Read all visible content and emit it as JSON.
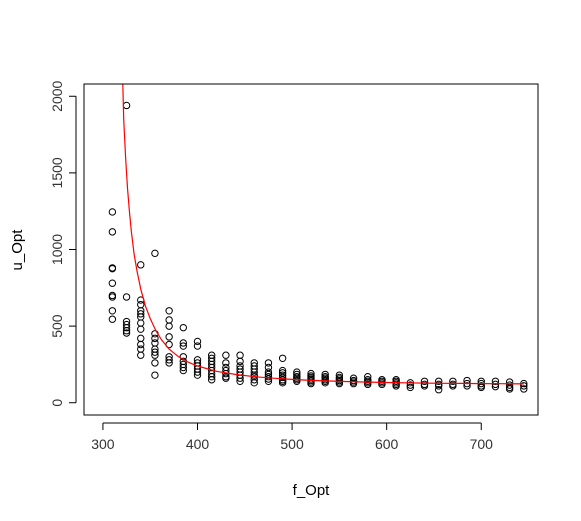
{
  "chart_data": {
    "type": "scatter",
    "title": "",
    "xlabel": "f_Opt",
    "ylabel": "u_Opt",
    "xlim": [
      280,
      760
    ],
    "ylim": [
      -80,
      2080
    ],
    "x_ticks": [
      300,
      400,
      500,
      600,
      700
    ],
    "y_ticks": [
      0,
      500,
      1000,
      1500,
      2000
    ],
    "x_tick_labels": [
      "300",
      "400",
      "500",
      "600",
      "700"
    ],
    "y_tick_labels": [
      "0",
      "500",
      "1000",
      "1500",
      "2000"
    ],
    "grid": false,
    "legend": "none",
    "point_color": "#000000",
    "curve_color": "#ff0000",
    "points": [
      [
        310,
        1245
      ],
      [
        310,
        1115
      ],
      [
        310,
        880
      ],
      [
        310,
        875
      ],
      [
        310,
        780
      ],
      [
        310,
        700
      ],
      [
        310,
        690
      ],
      [
        310,
        600
      ],
      [
        310,
        545
      ],
      [
        325,
        1940
      ],
      [
        325,
        690
      ],
      [
        325,
        530
      ],
      [
        325,
        510
      ],
      [
        325,
        490
      ],
      [
        325,
        470
      ],
      [
        325,
        455
      ],
      [
        340,
        900
      ],
      [
        340,
        670
      ],
      [
        340,
        640
      ],
      [
        340,
        600
      ],
      [
        340,
        580
      ],
      [
        340,
        560
      ],
      [
        340,
        520
      ],
      [
        340,
        480
      ],
      [
        340,
        420
      ],
      [
        340,
        380
      ],
      [
        340,
        350
      ],
      [
        340,
        310
      ],
      [
        355,
        975
      ],
      [
        355,
        450
      ],
      [
        355,
        420
      ],
      [
        355,
        390
      ],
      [
        355,
        350
      ],
      [
        355,
        330
      ],
      [
        355,
        310
      ],
      [
        355,
        260
      ],
      [
        355,
        180
      ],
      [
        370,
        600
      ],
      [
        370,
        540
      ],
      [
        370,
        500
      ],
      [
        370,
        430
      ],
      [
        370,
        380
      ],
      [
        370,
        300
      ],
      [
        370,
        280
      ],
      [
        370,
        260
      ],
      [
        385,
        490
      ],
      [
        385,
        390
      ],
      [
        385,
        370
      ],
      [
        385,
        300
      ],
      [
        385,
        270
      ],
      [
        385,
        250
      ],
      [
        385,
        230
      ],
      [
        385,
        210
      ],
      [
        400,
        400
      ],
      [
        400,
        370
      ],
      [
        400,
        280
      ],
      [
        400,
        260
      ],
      [
        400,
        240
      ],
      [
        400,
        220
      ],
      [
        400,
        200
      ],
      [
        400,
        180
      ],
      [
        415,
        310
      ],
      [
        415,
        290
      ],
      [
        415,
        270
      ],
      [
        415,
        250
      ],
      [
        415,
        230
      ],
      [
        415,
        210
      ],
      [
        415,
        190
      ],
      [
        415,
        170
      ],
      [
        415,
        150
      ],
      [
        430,
        310
      ],
      [
        430,
        260
      ],
      [
        430,
        230
      ],
      [
        430,
        210
      ],
      [
        430,
        190
      ],
      [
        430,
        170
      ],
      [
        430,
        160
      ],
      [
        445,
        310
      ],
      [
        445,
        270
      ],
      [
        445,
        240
      ],
      [
        445,
        220
      ],
      [
        445,
        200
      ],
      [
        445,
        180
      ],
      [
        445,
        160
      ],
      [
        445,
        140
      ],
      [
        460,
        260
      ],
      [
        460,
        240
      ],
      [
        460,
        220
      ],
      [
        460,
        200
      ],
      [
        460,
        180
      ],
      [
        460,
        170
      ],
      [
        460,
        150
      ],
      [
        460,
        130
      ],
      [
        475,
        260
      ],
      [
        475,
        230
      ],
      [
        475,
        200
      ],
      [
        475,
        185
      ],
      [
        475,
        170
      ],
      [
        475,
        155
      ],
      [
        475,
        140
      ],
      [
        490,
        290
      ],
      [
        490,
        210
      ],
      [
        490,
        195
      ],
      [
        490,
        180
      ],
      [
        490,
        165
      ],
      [
        490,
        150
      ],
      [
        490,
        140
      ],
      [
        490,
        130
      ],
      [
        505,
        200
      ],
      [
        505,
        185
      ],
      [
        505,
        170
      ],
      [
        505,
        160
      ],
      [
        505,
        150
      ],
      [
        505,
        140
      ],
      [
        520,
        190
      ],
      [
        520,
        175
      ],
      [
        520,
        165
      ],
      [
        520,
        155
      ],
      [
        520,
        145
      ],
      [
        520,
        135
      ],
      [
        520,
        125
      ],
      [
        535,
        185
      ],
      [
        535,
        170
      ],
      [
        535,
        160
      ],
      [
        535,
        150
      ],
      [
        535,
        140
      ],
      [
        535,
        130
      ],
      [
        550,
        180
      ],
      [
        550,
        165
      ],
      [
        550,
        155
      ],
      [
        550,
        145
      ],
      [
        550,
        135
      ],
      [
        550,
        125
      ],
      [
        565,
        160
      ],
      [
        565,
        145
      ],
      [
        565,
        135
      ],
      [
        565,
        125
      ],
      [
        580,
        170
      ],
      [
        580,
        150
      ],
      [
        580,
        140
      ],
      [
        580,
        130
      ],
      [
        580,
        120
      ],
      [
        595,
        150
      ],
      [
        595,
        140
      ],
      [
        595,
        130
      ],
      [
        595,
        120
      ],
      [
        610,
        150
      ],
      [
        610,
        140
      ],
      [
        610,
        130
      ],
      [
        610,
        120
      ],
      [
        610,
        110
      ],
      [
        625,
        130
      ],
      [
        625,
        115
      ],
      [
        625,
        100
      ],
      [
        640,
        140
      ],
      [
        640,
        120
      ],
      [
        640,
        110
      ],
      [
        655,
        140
      ],
      [
        655,
        120
      ],
      [
        655,
        110
      ],
      [
        655,
        85
      ],
      [
        670,
        140
      ],
      [
        670,
        120
      ],
      [
        670,
        110
      ],
      [
        685,
        145
      ],
      [
        685,
        125
      ],
      [
        685,
        110
      ],
      [
        700,
        140
      ],
      [
        700,
        125
      ],
      [
        700,
        110
      ],
      [
        700,
        100
      ],
      [
        715,
        140
      ],
      [
        715,
        120
      ],
      [
        715,
        105
      ],
      [
        730,
        135
      ],
      [
        730,
        115
      ],
      [
        730,
        100
      ],
      [
        730,
        90
      ],
      [
        745,
        125
      ],
      [
        745,
        110
      ],
      [
        745,
        90
      ]
    ],
    "fitted_curve": [
      [
        321,
        2080
      ],
      [
        322,
        1850
      ],
      [
        324,
        1600
      ],
      [
        326,
        1400
      ],
      [
        328,
        1250
      ],
      [
        330,
        1120
      ],
      [
        333,
        970
      ],
      [
        336,
        860
      ],
      [
        340,
        740
      ],
      [
        345,
        630
      ],
      [
        350,
        550
      ],
      [
        356,
        470
      ],
      [
        362,
        410
      ],
      [
        370,
        350
      ],
      [
        380,
        300
      ],
      [
        390,
        265
      ],
      [
        400,
        240
      ],
      [
        420,
        205
      ],
      [
        440,
        185
      ],
      [
        460,
        170
      ],
      [
        480,
        160
      ],
      [
        500,
        152
      ],
      [
        520,
        146
      ],
      [
        540,
        142
      ],
      [
        560,
        138
      ],
      [
        580,
        135
      ],
      [
        600,
        132
      ],
      [
        620,
        130
      ],
      [
        640,
        128
      ],
      [
        660,
        127
      ],
      [
        680,
        126
      ],
      [
        700,
        125
      ],
      [
        720,
        124
      ],
      [
        745,
        123
      ]
    ]
  }
}
